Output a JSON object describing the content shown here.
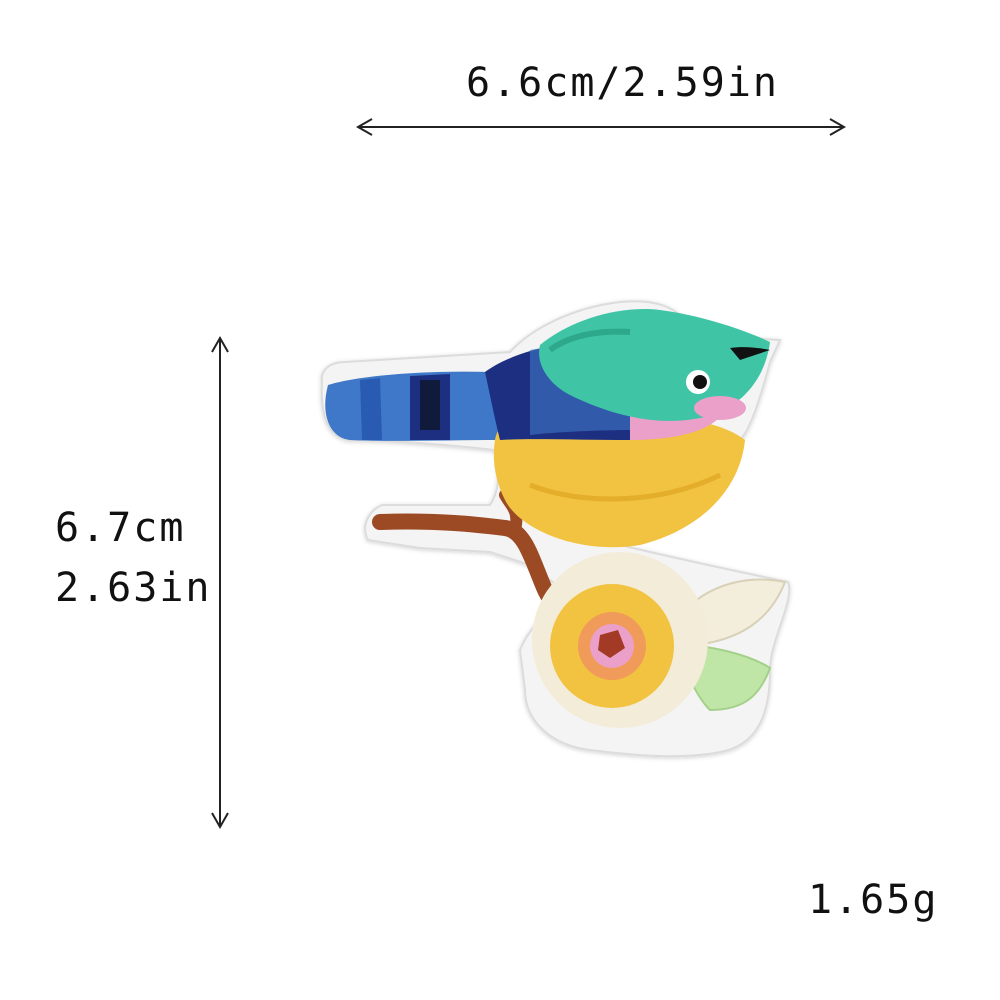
{
  "dimensions": {
    "width": "6.6cm/2.59in",
    "height_cm": "6.7cm",
    "height_in": "2.63in"
  },
  "weight": "1.65g",
  "patch": {
    "subject": "embroidered bird on branch with flower patch",
    "colors": {
      "tail_blue": "#3f78c8",
      "wing_navy": "#1d2f80",
      "head_teal": "#3fc4a6",
      "belly_yellow": "#f1c341",
      "cheek_pink": "#eaa0c8",
      "branch_brown": "#9b4a24",
      "flower_cream": "#f3ecd8",
      "leaf_green": "#bfe6a6",
      "border_white": "#f4f4f4"
    }
  }
}
